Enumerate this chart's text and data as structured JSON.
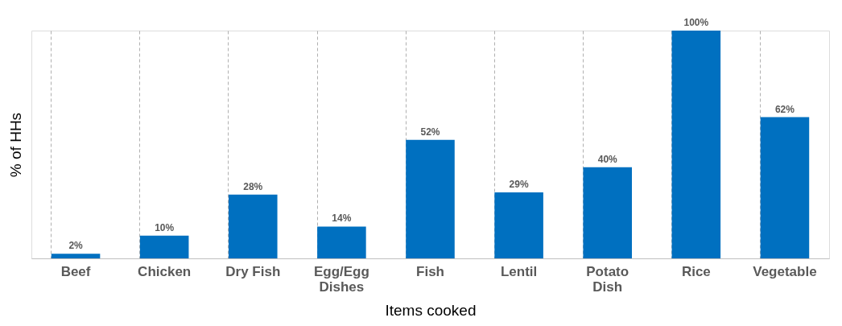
{
  "chart_data": {
    "type": "bar",
    "xlabel": "Items cooked",
    "ylabel": "% of HHs",
    "categories": [
      "Beef",
      "Chicken",
      "Dry Fish",
      "Egg/Egg Dishes",
      "Fish",
      "Lentil",
      "Potato Dish",
      "Rice",
      "Vegetable"
    ],
    "values": [
      2,
      10,
      28,
      14,
      52,
      29,
      40,
      100,
      62
    ],
    "value_labels": [
      "2%",
      "10%",
      "28%",
      "14%",
      "52%",
      "29%",
      "40%",
      "100%",
      "62%"
    ],
    "color": "#0070c0",
    "grid": "x",
    "tick_labels": "x"
  }
}
